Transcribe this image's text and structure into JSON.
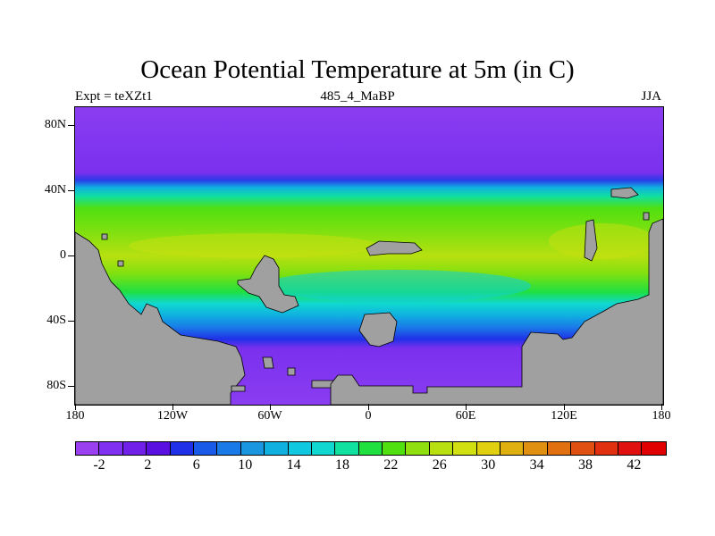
{
  "title": "Ocean Potential Temperature at 5m (in C)",
  "subtitle_left": "Expt = teXZt1",
  "subtitle_center": "485_4_MaBP",
  "subtitle_right": "JJA",
  "lat_labels": [
    "80N",
    "40N",
    "0",
    "40S",
    "80S"
  ],
  "lon_labels": [
    "180",
    "120W",
    "60W",
    "0",
    "60E",
    "120E",
    "180"
  ],
  "colorbar": {
    "labels": [
      "-2",
      "2",
      "6",
      "10",
      "14",
      "18",
      "22",
      "26",
      "30",
      "34",
      "38",
      "42"
    ],
    "colors": [
      "#9b40f0",
      "#8030f0",
      "#7020e8",
      "#5a10e0",
      "#2030e8",
      "#1a5ae8",
      "#1a7ae8",
      "#1a96e0",
      "#10b0e0",
      "#10c8e0",
      "#10d8d0",
      "#10e0a0",
      "#20e040",
      "#50e010",
      "#90e010",
      "#b8e010",
      "#d0e010",
      "#e0d010",
      "#e0b010",
      "#e09010",
      "#e07010",
      "#e05010",
      "#e03010",
      "#e01010",
      "#e00000"
    ]
  },
  "colors": {
    "land": "#a0a0a0",
    "frame": "#000000"
  }
}
